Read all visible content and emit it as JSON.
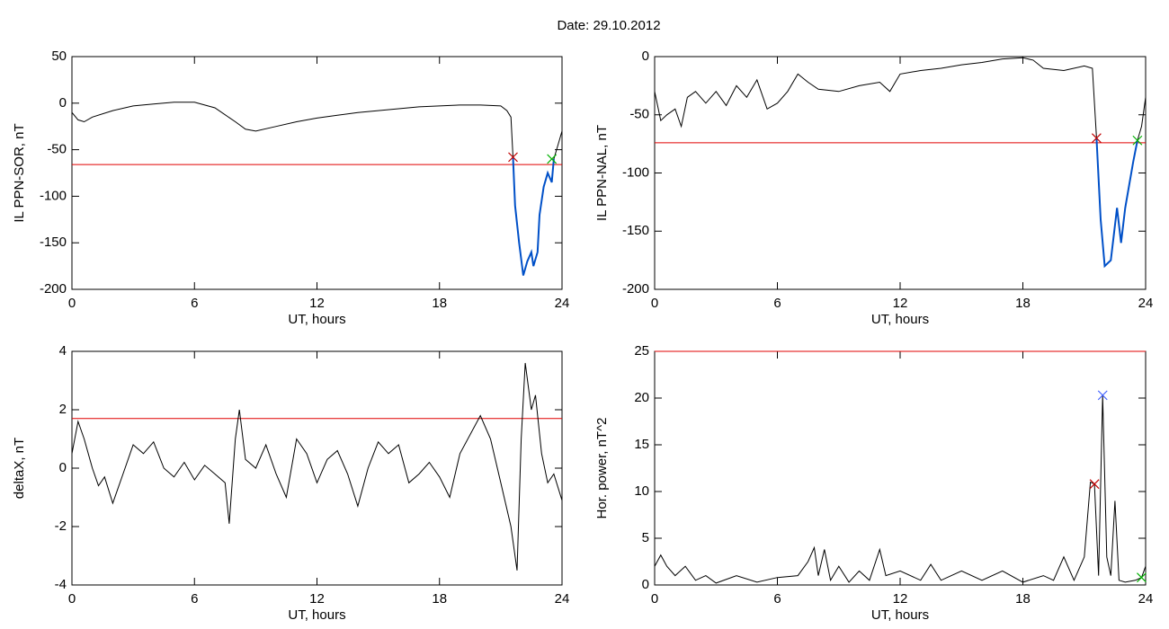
{
  "title": "Date:  29.10.2012",
  "chart_data": [
    {
      "type": "line",
      "ylabel": "IL PPN-SOR, nT",
      "xlabel": "UT, hours",
      "xlim": [
        0,
        24
      ],
      "xticks": [
        0,
        6,
        12,
        18,
        24
      ],
      "ylim": [
        -200,
        50
      ],
      "yticks": [
        -200,
        -150,
        -100,
        -50,
        0,
        50
      ],
      "x": [
        0,
        0.3,
        0.6,
        1,
        2,
        3,
        4,
        5,
        6,
        7,
        8,
        8.5,
        9,
        10,
        11,
        12,
        13,
        14,
        15,
        16,
        17,
        18,
        19,
        20,
        21,
        21.3,
        21.5,
        21.6,
        21.7,
        21.9,
        22.1,
        22.3,
        22.5,
        22.6,
        22.8,
        22.9,
        23.1,
        23.3,
        23.5,
        23.6,
        23.8,
        24
      ],
      "series": [
        {
          "color": "#000000",
          "values": [
            -10,
            -18,
            -20,
            -15,
            -8,
            -3,
            -1,
            1,
            1,
            -5,
            -20,
            -28,
            -30,
            -25,
            -20,
            -16,
            -13,
            -10,
            -8,
            -6,
            -4,
            -3,
            -2,
            -2,
            -3,
            -8,
            -15,
            -58,
            -110,
            -150,
            -185,
            -170,
            -160,
            -175,
            -160,
            -120,
            -90,
            -75,
            -85,
            -60,
            -45,
            -30
          ]
        },
        {
          "color": "#0050c8",
          "values": [
            null,
            null,
            null,
            null,
            null,
            null,
            null,
            null,
            null,
            null,
            null,
            null,
            null,
            null,
            null,
            null,
            null,
            null,
            null,
            null,
            null,
            null,
            null,
            null,
            null,
            null,
            null,
            -58,
            -110,
            -150,
            -185,
            -170,
            -160,
            -175,
            -160,
            -120,
            -90,
            -75,
            -85,
            -60,
            null,
            null
          ]
        }
      ],
      "threshold": {
        "value": -66,
        "color": "#e00000"
      },
      "markers": [
        {
          "x": 21.6,
          "y": -58,
          "color": "#c00000"
        },
        {
          "x": 23.5,
          "y": -60,
          "color": "#00b000"
        }
      ]
    },
    {
      "type": "line",
      "ylabel": "IL PPN-NAL, nT",
      "xlabel": "UT, hours",
      "xlim": [
        0,
        24
      ],
      "xticks": [
        0,
        6,
        12,
        18,
        24
      ],
      "ylim": [
        -200,
        0
      ],
      "yticks": [
        -200,
        -150,
        -100,
        -50,
        0
      ],
      "x": [
        0,
        0.3,
        0.6,
        1,
        1.3,
        1.6,
        2,
        2.5,
        3,
        3.5,
        4,
        4.5,
        5,
        5.5,
        6,
        6.5,
        7,
        7.5,
        8,
        9,
        10,
        11,
        11.5,
        12,
        13,
        14,
        15,
        16,
        17,
        18,
        18.5,
        19,
        20,
        21,
        21.4,
        21.6,
        21.8,
        22,
        22.3,
        22.6,
        22.8,
        23,
        23.2,
        23.4,
        23.6,
        23.8,
        24
      ],
      "series": [
        {
          "color": "#000000",
          "values": [
            -30,
            -55,
            -50,
            -45,
            -60,
            -35,
            -30,
            -40,
            -30,
            -42,
            -25,
            -35,
            -20,
            -45,
            -40,
            -30,
            -15,
            -22,
            -28,
            -30,
            -25,
            -22,
            -30,
            -15,
            -12,
            -10,
            -7,
            -5,
            -2,
            -1,
            -3,
            -10,
            -12,
            -8,
            -10,
            -70,
            -140,
            -180,
            -175,
            -130,
            -160,
            -130,
            -110,
            -90,
            -72,
            -60,
            -35
          ]
        },
        {
          "color": "#0050c8",
          "values": [
            null,
            null,
            null,
            null,
            null,
            null,
            null,
            null,
            null,
            null,
            null,
            null,
            null,
            null,
            null,
            null,
            null,
            null,
            null,
            null,
            null,
            null,
            null,
            null,
            null,
            null,
            null,
            null,
            null,
            null,
            null,
            null,
            null,
            null,
            null,
            -70,
            -140,
            -180,
            -175,
            -130,
            -160,
            -130,
            -110,
            -90,
            -72,
            null,
            null
          ]
        }
      ],
      "threshold": {
        "value": -74,
        "color": "#e00000"
      },
      "markers": [
        {
          "x": 21.6,
          "y": -70,
          "color": "#c00000"
        },
        {
          "x": 23.6,
          "y": -72,
          "color": "#00b000"
        }
      ]
    },
    {
      "type": "line",
      "ylabel": "deltaX, nT",
      "xlabel": "UT, hours",
      "xlim": [
        0,
        24
      ],
      "xticks": [
        0,
        6,
        12,
        18,
        24
      ],
      "ylim": [
        -4,
        4
      ],
      "yticks": [
        -4,
        -2,
        0,
        2,
        4
      ],
      "x": [
        0,
        0.3,
        0.6,
        1,
        1.3,
        1.6,
        2,
        2.5,
        3,
        3.5,
        4,
        4.5,
        5,
        5.5,
        6,
        6.5,
        7,
        7.5,
        7.7,
        8,
        8.2,
        8.5,
        9,
        9.5,
        10,
        10.5,
        11,
        11.5,
        12,
        12.5,
        13,
        13.5,
        14,
        14.5,
        15,
        15.5,
        16,
        16.5,
        17,
        17.5,
        18,
        18.5,
        19,
        20,
        20.5,
        21,
        21.5,
        21.8,
        22,
        22.2,
        22.5,
        22.7,
        23,
        23.3,
        23.6,
        24
      ],
      "series": [
        {
          "color": "#000000",
          "values": [
            0.5,
            1.6,
            1.0,
            0,
            -0.6,
            -0.3,
            -1.2,
            -0.2,
            0.8,
            0.5,
            0.9,
            0,
            -0.3,
            0.2,
            -0.4,
            0.1,
            -0.2,
            -0.5,
            -1.9,
            1.0,
            2.0,
            0.3,
            0,
            0.8,
            -0.2,
            -1.0,
            1.0,
            0.5,
            -0.5,
            0.3,
            0.6,
            -0.2,
            -1.3,
            0,
            0.9,
            0.5,
            0.8,
            -0.5,
            -0.2,
            0.2,
            -0.3,
            -1.0,
            0.5,
            1.8,
            1.0,
            -0.5,
            -2.0,
            -3.5,
            1.0,
            3.6,
            2.0,
            2.5,
            0.5,
            -0.5,
            -0.2,
            -1.1
          ]
        }
      ],
      "threshold": {
        "value": 1.7,
        "color": "#e00000"
      },
      "markers": []
    },
    {
      "type": "line",
      "ylabel": "Hor. power, nT^2",
      "xlabel": "UT, hours",
      "xlim": [
        0,
        24
      ],
      "xticks": [
        0,
        6,
        12,
        18,
        24
      ],
      "ylim": [
        0,
        25
      ],
      "yticks": [
        0,
        5,
        10,
        15,
        20,
        25
      ],
      "x": [
        0,
        0.3,
        0.6,
        1,
        1.5,
        2,
        2.5,
        3,
        4,
        5,
        6,
        7,
        7.5,
        7.8,
        8,
        8.3,
        8.6,
        9,
        9.5,
        10,
        10.5,
        11,
        11.3,
        12,
        13,
        13.5,
        14,
        15,
        16,
        17,
        18,
        19,
        19.5,
        20,
        20.5,
        21,
        21.3,
        21.5,
        21.7,
        21.9,
        22.1,
        22.3,
        22.5,
        22.7,
        23,
        23.5,
        23.8,
        24
      ],
      "series": [
        {
          "color": "#000000",
          "values": [
            2,
            3.2,
            2,
            1,
            2,
            0.5,
            1,
            0.2,
            1,
            0.3,
            0.8,
            1,
            2.5,
            4,
            1,
            3.8,
            0.5,
            2,
            0.3,
            1.5,
            0.5,
            3.8,
            1,
            1.5,
            0.5,
            2.2,
            0.5,
            1.5,
            0.5,
            1.5,
            0.3,
            1,
            0.5,
            3,
            0.5,
            3,
            11,
            10.8,
            1,
            20.3,
            3,
            1,
            9,
            0.5,
            0.3,
            0.5,
            0.8,
            2
          ]
        }
      ],
      "threshold": {
        "value": 25,
        "color": "#e00000"
      },
      "markers": [
        {
          "x": 21.5,
          "y": 10.8,
          "color": "#c00000"
        },
        {
          "x": 21.9,
          "y": 20.3,
          "color": "#4060ff"
        },
        {
          "x": 23.8,
          "y": 0.8,
          "color": "#00b000"
        }
      ]
    }
  ]
}
